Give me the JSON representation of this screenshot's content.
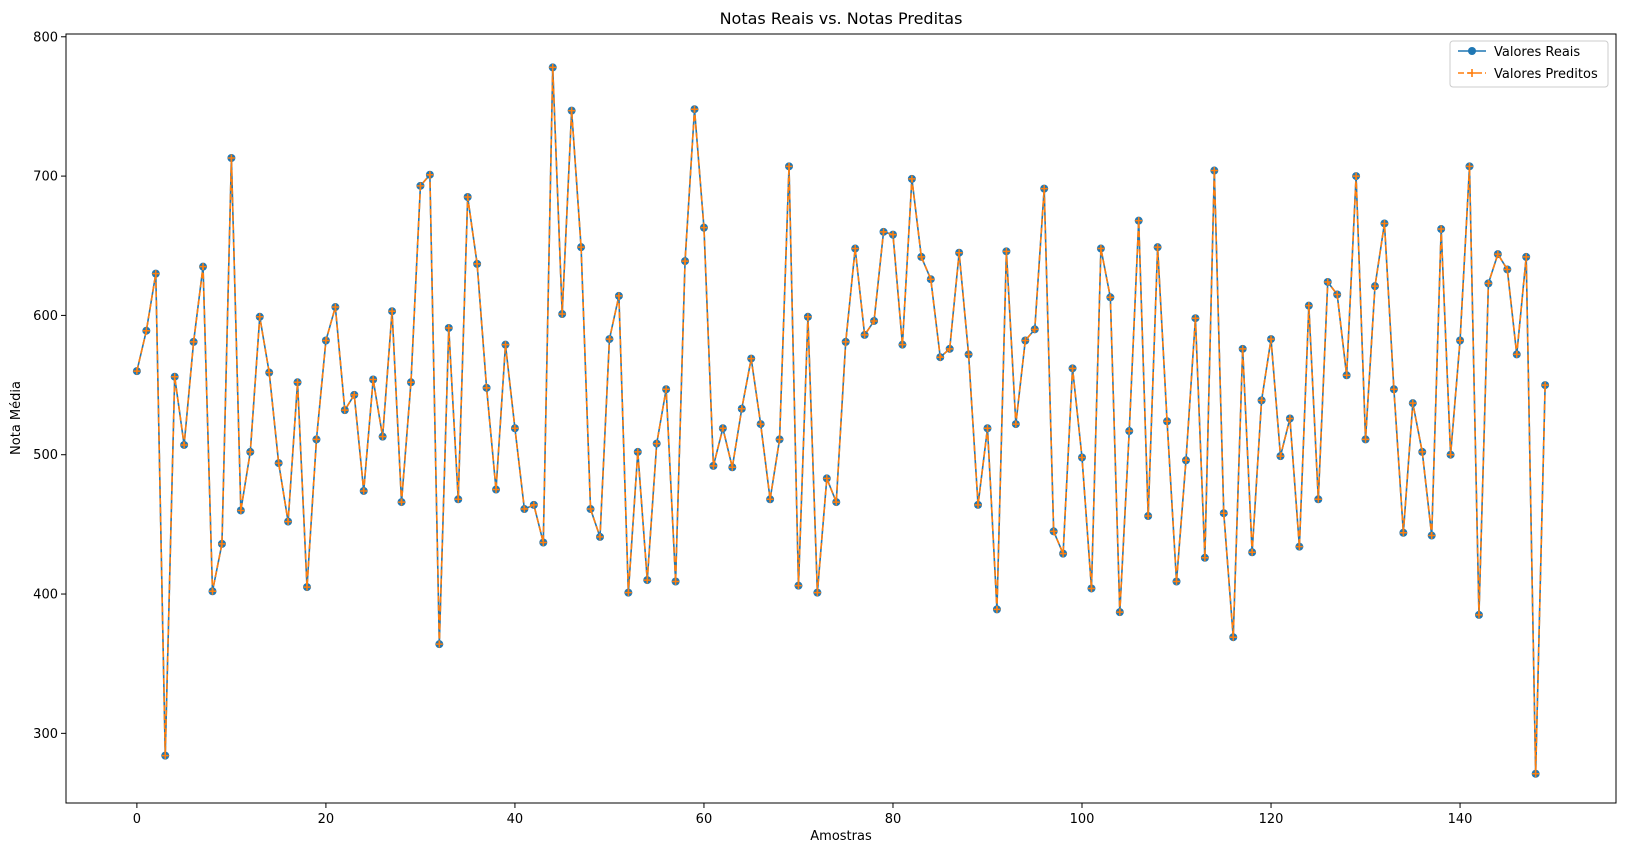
{
  "chart_data": {
    "type": "line",
    "title": "Notas Reais vs. Notas Preditas",
    "xlabel": "Amostras",
    "ylabel": "Nota Média",
    "xlim": [
      -7.5,
      156.5
    ],
    "ylim": [
      250,
      802
    ],
    "xticks": [
      0,
      20,
      40,
      60,
      80,
      100,
      120,
      140
    ],
    "yticks": [
      300,
      400,
      500,
      600,
      700,
      800
    ],
    "grid": false,
    "legend_position": "top-right",
    "colors": {
      "real": "#1f77b4",
      "pred": "#ff7f0e"
    },
    "series": [
      {
        "name": "Valores Reais",
        "style": "solid",
        "marker": "circle",
        "color": "#1f77b4",
        "values": [
          560,
          589,
          630,
          284,
          556,
          507,
          581,
          635,
          402,
          436,
          713,
          460,
          502,
          599,
          559,
          494,
          452,
          552,
          405,
          511,
          582,
          606,
          532,
          543,
          474,
          554,
          513,
          603,
          466,
          552,
          693,
          701,
          364,
          591,
          468,
          685,
          637,
          548,
          475,
          579,
          519,
          461,
          464,
          437,
          778,
          601,
          747,
          649,
          461,
          441,
          583,
          614,
          401,
          502,
          410,
          508,
          547,
          409,
          639,
          748,
          663,
          492,
          519,
          491,
          533,
          569,
          522,
          468,
          511,
          707,
          406,
          599,
          401,
          483,
          466,
          581,
          648,
          586,
          596,
          660,
          658,
          579,
          698,
          642,
          626,
          570,
          576,
          645,
          572,
          464,
          519,
          389,
          646,
          522,
          582,
          590,
          691,
          445,
          429,
          562,
          498,
          404,
          648,
          613,
          387,
          517,
          668,
          456,
          649,
          524,
          409,
          496,
          598,
          426,
          704,
          458,
          369,
          576,
          430,
          539,
          583,
          499,
          526,
          434,
          607,
          468,
          624,
          615,
          557,
          700,
          511,
          621,
          666,
          547,
          444,
          537,
          502,
          442,
          662,
          500,
          582,
          707,
          385,
          623,
          644,
          633,
          572,
          642,
          271,
          550
        ]
      },
      {
        "name": "Valores Preditos",
        "style": "dashed",
        "marker": "plus",
        "color": "#ff7f0e",
        "values": [
          560,
          589,
          630,
          284,
          556,
          507,
          581,
          635,
          402,
          436,
          713,
          460,
          502,
          599,
          559,
          494,
          452,
          552,
          405,
          511,
          582,
          606,
          532,
          543,
          474,
          554,
          513,
          603,
          466,
          552,
          693,
          701,
          364,
          591,
          468,
          685,
          637,
          548,
          475,
          579,
          519,
          461,
          464,
          437,
          778,
          601,
          747,
          649,
          461,
          441,
          583,
          614,
          401,
          502,
          410,
          508,
          547,
          409,
          639,
          748,
          663,
          492,
          519,
          491,
          533,
          569,
          522,
          468,
          511,
          707,
          406,
          599,
          401,
          483,
          466,
          581,
          648,
          586,
          596,
          660,
          658,
          579,
          698,
          642,
          626,
          570,
          576,
          645,
          572,
          464,
          519,
          389,
          646,
          522,
          582,
          590,
          691,
          445,
          429,
          562,
          498,
          404,
          648,
          613,
          387,
          517,
          668,
          456,
          649,
          524,
          409,
          496,
          598,
          426,
          704,
          458,
          369,
          576,
          430,
          539,
          583,
          499,
          526,
          434,
          607,
          468,
          624,
          615,
          557,
          700,
          511,
          621,
          666,
          547,
          444,
          537,
          502,
          442,
          662,
          500,
          582,
          707,
          385,
          623,
          644,
          633,
          572,
          642,
          271,
          550
        ]
      }
    ]
  }
}
